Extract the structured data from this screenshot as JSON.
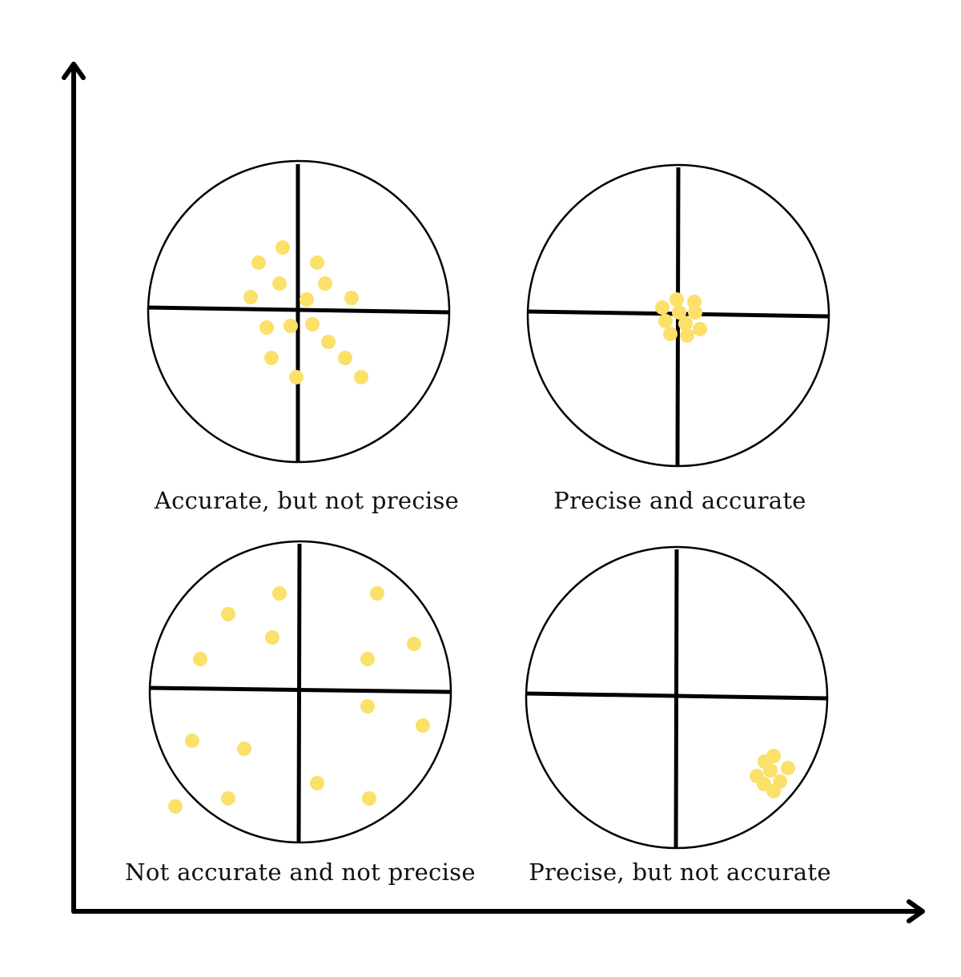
{
  "colors": {
    "background": "#ffffff",
    "ink": "#000000",
    "dot": "#fbe06a"
  },
  "panels": [
    {
      "id": "accurate-not-precise",
      "label": "Accurate, but not precise"
    },
    {
      "id": "precise-and-accurate",
      "label": "Precise and accurate"
    },
    {
      "id": "not-accurate-not-precise",
      "label": "Not accurate and not precise"
    },
    {
      "id": "precise-not-accurate",
      "label": "Precise, but not accurate"
    }
  ]
}
